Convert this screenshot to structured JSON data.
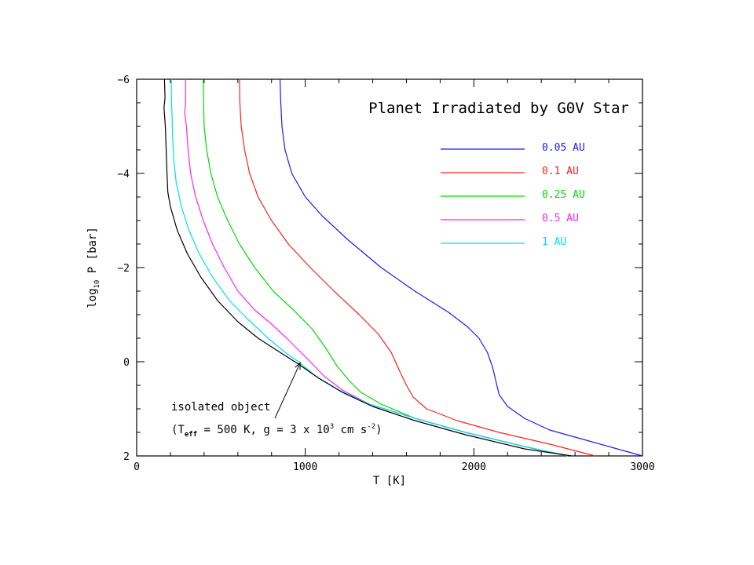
{
  "chart_data": {
    "type": "line",
    "title": "Planet Irradiated by G0V Star",
    "xlabel": "T [K]",
    "ylabel": {
      "main": "log",
      "sub": "10",
      "rest": " P [bar]"
    },
    "xlim": [
      0,
      3000
    ],
    "ylim": [
      2,
      -6
    ],
    "y_inverted": true,
    "xticks": [
      0,
      1000,
      2000,
      3000
    ],
    "yticks": [
      -6,
      -4,
      -2,
      0,
      2
    ],
    "grid": false,
    "legend_position": "top-right",
    "series": [
      {
        "name": "0.05 AU",
        "color": "#1a1aff",
        "points": [
          [
            850,
            -6
          ],
          [
            855,
            -5.5
          ],
          [
            862,
            -5
          ],
          [
            880,
            -4.5
          ],
          [
            920,
            -4
          ],
          [
            1000,
            -3.5
          ],
          [
            1100,
            -3.1
          ],
          [
            1250,
            -2.6
          ],
          [
            1450,
            -2
          ],
          [
            1650,
            -1.5
          ],
          [
            1850,
            -1.05
          ],
          [
            1960,
            -0.75
          ],
          [
            2030,
            -0.5
          ],
          [
            2080,
            -0.2
          ],
          [
            2110,
            0.1
          ],
          [
            2130,
            0.4
          ],
          [
            2150,
            0.7
          ],
          [
            2200,
            0.95
          ],
          [
            2300,
            1.2
          ],
          [
            2450,
            1.45
          ],
          [
            2650,
            1.65
          ],
          [
            2850,
            1.85
          ],
          [
            3000,
            2.0
          ]
        ]
      },
      {
        "name": "0.1 AU",
        "color": "#ff2020",
        "points": [
          [
            610,
            -6
          ],
          [
            612,
            -5.5
          ],
          [
            620,
            -5
          ],
          [
            640,
            -4.5
          ],
          [
            670,
            -4
          ],
          [
            720,
            -3.5
          ],
          [
            800,
            -3
          ],
          [
            900,
            -2.5
          ],
          [
            1030,
            -2
          ],
          [
            1170,
            -1.5
          ],
          [
            1320,
            -1
          ],
          [
            1430,
            -0.6
          ],
          [
            1510,
            -0.2
          ],
          [
            1560,
            0.2
          ],
          [
            1600,
            0.5
          ],
          [
            1640,
            0.75
          ],
          [
            1720,
            1.0
          ],
          [
            1900,
            1.25
          ],
          [
            2150,
            1.5
          ],
          [
            2450,
            1.75
          ],
          [
            2720,
            2.0
          ]
        ]
      },
      {
        "name": "0.25 AU",
        "color": "#00dd00",
        "points": [
          [
            395,
            -6
          ],
          [
            397,
            -5.5
          ],
          [
            400,
            -5
          ],
          [
            415,
            -4.5
          ],
          [
            440,
            -4
          ],
          [
            480,
            -3.5
          ],
          [
            540,
            -3
          ],
          [
            610,
            -2.5
          ],
          [
            700,
            -2
          ],
          [
            810,
            -1.5
          ],
          [
            930,
            -1.1
          ],
          [
            1040,
            -0.7
          ],
          [
            1120,
            -0.3
          ],
          [
            1190,
            0.1
          ],
          [
            1260,
            0.4
          ],
          [
            1330,
            0.65
          ],
          [
            1450,
            0.9
          ],
          [
            1650,
            1.2
          ],
          [
            1950,
            1.5
          ],
          [
            2300,
            1.8
          ],
          [
            2560,
            2.0
          ]
        ]
      },
      {
        "name": "0.5 AU",
        "color": "#ff22ff",
        "points": [
          [
            290,
            -6
          ],
          [
            290,
            -5.5
          ],
          [
            285,
            -5.3
          ],
          [
            295,
            -5
          ],
          [
            305,
            -4.5
          ],
          [
            320,
            -4
          ],
          [
            350,
            -3.5
          ],
          [
            395,
            -3
          ],
          [
            450,
            -2.5
          ],
          [
            520,
            -2
          ],
          [
            600,
            -1.5
          ],
          [
            700,
            -1.1
          ],
          [
            800,
            -0.8
          ],
          [
            890,
            -0.5
          ],
          [
            960,
            -0.25
          ],
          [
            1030,
            0.0
          ],
          [
            1110,
            0.3
          ],
          [
            1220,
            0.6
          ],
          [
            1380,
            0.9
          ],
          [
            1650,
            1.2
          ],
          [
            1950,
            1.5
          ],
          [
            2300,
            1.8
          ],
          [
            2560,
            2.0
          ]
        ]
      },
      {
        "name": "1 AU",
        "color": "#00e0e8",
        "points": [
          [
            205,
            -6
          ],
          [
            207,
            -5.5
          ],
          [
            210,
            -5.2
          ],
          [
            213,
            -4.8
          ],
          [
            220,
            -4.3
          ],
          [
            235,
            -3.8
          ],
          [
            265,
            -3.3
          ],
          [
            310,
            -2.8
          ],
          [
            370,
            -2.3
          ],
          [
            450,
            -1.8
          ],
          [
            550,
            -1.3
          ],
          [
            660,
            -0.9
          ],
          [
            780,
            -0.5
          ],
          [
            880,
            -0.2
          ],
          [
            960,
            0.0
          ],
          [
            1060,
            0.3
          ],
          [
            1200,
            0.6
          ],
          [
            1380,
            0.9
          ],
          [
            1650,
            1.2
          ],
          [
            1950,
            1.5
          ],
          [
            2300,
            1.8
          ],
          [
            2560,
            2.0
          ]
        ]
      },
      {
        "name": "isolated object",
        "color": "#000000",
        "points": [
          [
            165,
            -6
          ],
          [
            168,
            -5.6
          ],
          [
            162,
            -5.4
          ],
          [
            170,
            -5
          ],
          [
            175,
            -4.5
          ],
          [
            180,
            -4
          ],
          [
            185,
            -3.6
          ],
          [
            200,
            -3.3
          ],
          [
            240,
            -2.8
          ],
          [
            300,
            -2.3
          ],
          [
            380,
            -1.8
          ],
          [
            480,
            -1.3
          ],
          [
            600,
            -0.85
          ],
          [
            720,
            -0.5
          ],
          [
            850,
            -0.2
          ],
          [
            960,
            0.05
          ],
          [
            1080,
            0.35
          ],
          [
            1220,
            0.65
          ],
          [
            1400,
            0.95
          ],
          [
            1650,
            1.25
          ],
          [
            1950,
            1.55
          ],
          [
            2300,
            1.85
          ],
          [
            2580,
            2.0
          ]
        ]
      }
    ],
    "annotation": {
      "line1": "isolated object",
      "line2": {
        "a": "(T",
        "sub": "eff",
        "b": " = 500 K, g = 3 x 10",
        "sup": "3",
        "c": " cm s",
        "sup2": "-2",
        "d": ")"
      },
      "arrow_from": [
        820,
        1.2
      ],
      "arrow_to": [
        970,
        0.02
      ]
    }
  }
}
